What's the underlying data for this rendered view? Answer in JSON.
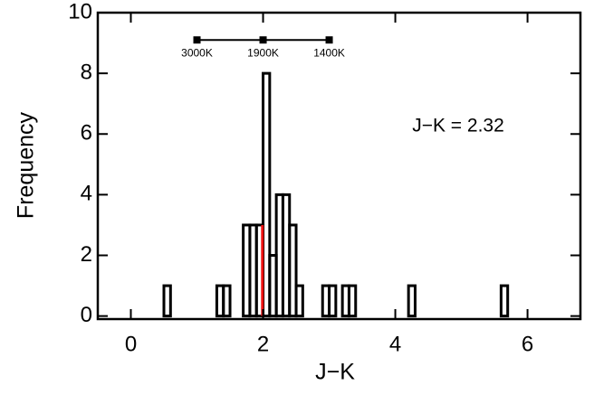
{
  "chart_data": {
    "type": "histogram",
    "xlabel": "J−K",
    "ylabel": "Frequency",
    "annotation": "J−K = 2.32",
    "bins": [
      0.4,
      0.5,
      0.6,
      0.7,
      0.8,
      0.9,
      1.0,
      1.1,
      1.2,
      1.3,
      1.4,
      1.5,
      1.6,
      1.7,
      1.8,
      1.9,
      2.0,
      2.1,
      2.2,
      2.3,
      2.4,
      2.5,
      2.6,
      2.7,
      2.8,
      2.9,
      3.0,
      3.1,
      3.2,
      3.3,
      3.4,
      3.5,
      3.6,
      3.7,
      3.8,
      3.9,
      4.0,
      4.1,
      4.2,
      4.3,
      4.4,
      4.5,
      4.6,
      4.7,
      4.8,
      4.9,
      5.0,
      5.1,
      5.2,
      5.3,
      5.4,
      5.5,
      5.6,
      5.7,
      5.8
    ],
    "values": [
      0,
      1,
      0,
      0,
      0,
      0,
      0,
      0,
      0,
      1,
      1,
      0,
      0,
      3,
      3,
      3,
      8,
      2,
      4,
      4,
      3,
      1,
      0,
      0,
      0,
      1,
      1,
      0,
      1,
      1,
      0,
      0,
      0,
      0,
      0,
      0,
      0,
      0,
      1,
      0,
      0,
      0,
      0,
      0,
      0,
      0,
      0,
      0,
      0,
      0,
      0,
      0,
      1,
      0
    ],
    "color": "#000000",
    "vline": {
      "x": 1.99,
      "color": "#ee1111"
    },
    "temperature_scale": {
      "y": 9.1,
      "points": [
        {
          "x": 1,
          "label": "3000K"
        },
        {
          "x": 2,
          "label": "1900K"
        },
        {
          "x": 3,
          "label": "1400K"
        }
      ]
    },
    "xlim": [
      -0.5,
      6.8
    ],
    "xticks": [
      0,
      2,
      4,
      6
    ],
    "ylim": [
      -0.1,
      10
    ],
    "yticks": [
      0,
      2,
      4,
      6,
      8,
      10
    ]
  }
}
